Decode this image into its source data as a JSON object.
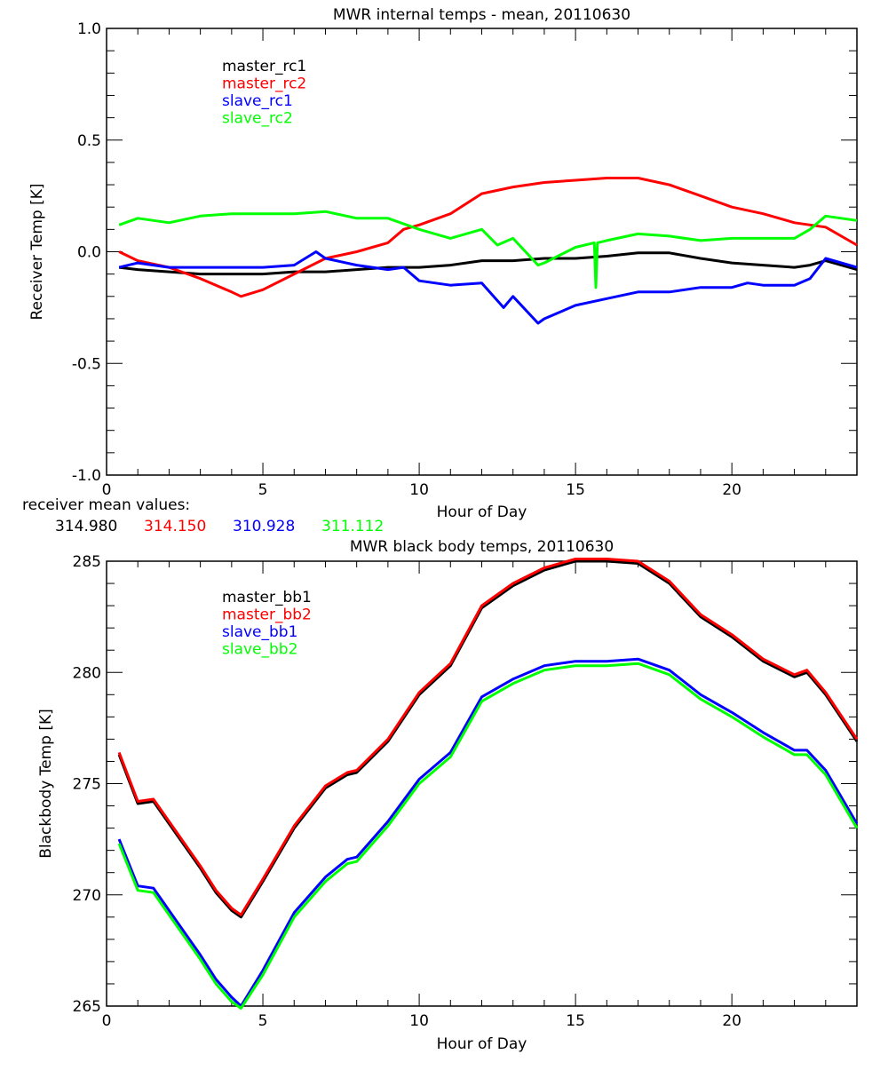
{
  "chart_data": [
    {
      "type": "line",
      "title": "MWR internal temps - mean, 20110630",
      "xlabel": "Hour of Day",
      "ylabel": "Receiver Temp [K]",
      "xlim": [
        0,
        24
      ],
      "ylim": [
        -1.0,
        1.0
      ],
      "xticks": [
        0,
        5,
        10,
        15,
        20
      ],
      "yticks": [
        -1.0,
        -0.5,
        0.0,
        0.5,
        1.0
      ],
      "ytick_labels": [
        "-1.0",
        "-0.5",
        "0.0",
        "0.5",
        "1.0"
      ],
      "legend_placement": "top-left",
      "grid": false,
      "series": [
        {
          "name": "master_rc1",
          "color": "#000000",
          "x": [
            0.4,
            1,
            2,
            3,
            4,
            5,
            6,
            7,
            8,
            9,
            10,
            11,
            12,
            13,
            14,
            15,
            16,
            17,
            18,
            19,
            20,
            21,
            22,
            22.5,
            23,
            24
          ],
          "y": [
            -0.07,
            -0.08,
            -0.09,
            -0.1,
            -0.1,
            -0.1,
            -0.09,
            -0.09,
            -0.08,
            -0.07,
            -0.07,
            -0.06,
            -0.04,
            -0.04,
            -0.03,
            -0.03,
            -0.02,
            -0.005,
            -0.005,
            -0.03,
            -0.05,
            -0.06,
            -0.07,
            -0.06,
            -0.04,
            -0.08
          ]
        },
        {
          "name": "master_rc2",
          "color": "#ff0000",
          "x": [
            0.4,
            1,
            2,
            3,
            4,
            4.3,
            5,
            6,
            7,
            8,
            9,
            9.5,
            10,
            11,
            12,
            13,
            14,
            15,
            16,
            17,
            18,
            19,
            20,
            21,
            22,
            23,
            24
          ],
          "y": [
            0.0,
            -0.04,
            -0.07,
            -0.12,
            -0.18,
            -0.2,
            -0.17,
            -0.1,
            -0.03,
            0.0,
            0.04,
            0.1,
            0.12,
            0.17,
            0.26,
            0.29,
            0.31,
            0.32,
            0.33,
            0.33,
            0.3,
            0.25,
            0.2,
            0.17,
            0.13,
            0.11,
            0.03
          ]
        },
        {
          "name": "slave_rc1",
          "color": "#0000ff",
          "x": [
            0.4,
            1,
            2,
            3,
            4,
            5,
            6,
            6.7,
            7,
            8,
            9,
            9.5,
            10,
            11,
            12,
            12.7,
            13,
            13.8,
            14,
            15,
            16,
            17,
            18,
            19,
            20,
            20.5,
            21,
            22,
            22.5,
            23,
            24
          ],
          "y": [
            -0.07,
            -0.05,
            -0.07,
            -0.07,
            -0.07,
            -0.07,
            -0.06,
            0.0,
            -0.03,
            -0.06,
            -0.08,
            -0.07,
            -0.13,
            -0.15,
            -0.14,
            -0.25,
            -0.2,
            -0.32,
            -0.3,
            -0.24,
            -0.21,
            -0.18,
            -0.18,
            -0.16,
            -0.16,
            -0.14,
            -0.15,
            -0.15,
            -0.12,
            -0.03,
            -0.07
          ]
        },
        {
          "name": "slave_rc2",
          "color": "#00ff00",
          "x": [
            0.4,
            1,
            2,
            3,
            4,
            5,
            6,
            7,
            8,
            9,
            10,
            11,
            12,
            12.5,
            13,
            13.8,
            14,
            15,
            15.6,
            15.65,
            15.7,
            16,
            17,
            18,
            19,
            20,
            21,
            22,
            22.5,
            23,
            24
          ],
          "y": [
            0.12,
            0.15,
            0.13,
            0.16,
            0.17,
            0.17,
            0.17,
            0.18,
            0.15,
            0.15,
            0.1,
            0.06,
            0.1,
            0.03,
            0.06,
            -0.06,
            -0.05,
            0.02,
            0.04,
            -0.16,
            0.04,
            0.05,
            0.08,
            0.07,
            0.05,
            0.06,
            0.06,
            0.06,
            0.1,
            0.16,
            0.14
          ]
        }
      ]
    },
    {
      "type": "line",
      "title": "MWR black body temps, 20110630",
      "xlabel": "Hour of Day",
      "ylabel": "Blackbody Temp [K]",
      "xlim": [
        0,
        24
      ],
      "ylim": [
        265,
        285
      ],
      "xticks": [
        0,
        5,
        10,
        15,
        20
      ],
      "yticks": [
        265,
        270,
        275,
        280,
        285
      ],
      "ytick_labels": [
        "265",
        "270",
        "275",
        "280",
        "285"
      ],
      "legend_placement": "top-left",
      "grid": false,
      "series": [
        {
          "name": "master_bb1",
          "color": "#000000",
          "x": [
            0.4,
            1,
            1.5,
            2,
            3,
            3.5,
            4,
            4.3,
            5,
            6,
            7,
            7.7,
            8,
            9,
            10,
            11,
            12,
            13,
            14,
            15,
            16,
            17,
            18,
            19,
            20,
            21,
            22,
            22.4,
            23,
            24
          ],
          "y": [
            276.3,
            274.1,
            274.2,
            273.2,
            271.2,
            270.1,
            269.3,
            269.0,
            270.6,
            273.0,
            274.8,
            275.4,
            275.5,
            276.9,
            279.0,
            280.3,
            282.9,
            283.9,
            284.6,
            285.0,
            285.0,
            284.9,
            284.0,
            282.5,
            281.6,
            280.5,
            279.8,
            280.0,
            279.0,
            276.9
          ]
        },
        {
          "name": "master_bb2",
          "color": "#ff0000",
          "x": [
            0.4,
            1,
            1.5,
            2,
            3,
            3.5,
            4,
            4.3,
            5,
            6,
            7,
            7.7,
            8,
            9,
            10,
            11,
            12,
            13,
            14,
            15,
            16,
            17,
            18,
            19,
            20,
            21,
            22,
            22.4,
            23,
            24
          ],
          "y": [
            276.4,
            274.2,
            274.3,
            273.3,
            271.3,
            270.2,
            269.4,
            269.1,
            270.7,
            273.1,
            274.9,
            275.5,
            275.6,
            277.0,
            279.1,
            280.4,
            283.0,
            284.0,
            284.7,
            285.1,
            285.1,
            285.0,
            284.1,
            282.6,
            281.7,
            280.6,
            279.9,
            280.1,
            279.1,
            277.0
          ]
        },
        {
          "name": "slave_bb1",
          "color": "#0000ff",
          "x": [
            0.4,
            1,
            1.5,
            2,
            3,
            3.5,
            4,
            4.3,
            5,
            6,
            7,
            7.7,
            8,
            9,
            10,
            11,
            12,
            13,
            14,
            15,
            16,
            17,
            18,
            19,
            20,
            21,
            22,
            22.4,
            23,
            24
          ],
          "y": [
            272.5,
            270.4,
            270.3,
            269.3,
            267.3,
            266.2,
            265.4,
            265.0,
            266.6,
            269.2,
            270.8,
            271.6,
            271.7,
            273.3,
            275.2,
            276.4,
            278.9,
            279.7,
            280.3,
            280.5,
            280.5,
            280.6,
            280.1,
            279.0,
            278.2,
            277.3,
            276.5,
            276.5,
            275.6,
            273.2
          ]
        },
        {
          "name": "slave_bb2",
          "color": "#00ff00",
          "x": [
            0.4,
            1,
            1.5,
            2,
            3,
            3.5,
            4,
            4.3,
            5,
            6,
            7,
            7.7,
            8,
            9,
            10,
            11,
            12,
            13,
            14,
            15,
            16,
            17,
            18,
            19,
            20,
            21,
            22,
            22.4,
            23,
            24
          ],
          "y": [
            272.3,
            270.2,
            270.1,
            269.1,
            267.1,
            266.0,
            265.2,
            264.9,
            266.4,
            269.0,
            270.6,
            271.4,
            271.5,
            273.1,
            275.0,
            276.2,
            278.7,
            279.5,
            280.1,
            280.3,
            280.3,
            280.4,
            279.9,
            278.8,
            278.0,
            277.1,
            276.3,
            276.3,
            275.4,
            273.0
          ]
        }
      ]
    }
  ],
  "receiver_mean": {
    "label": "receiver mean values:",
    "values": [
      {
        "text": "314.980",
        "color": "#000000"
      },
      {
        "text": "314.150",
        "color": "#ff0000"
      },
      {
        "text": "310.928",
        "color": "#0000ff"
      },
      {
        "text": "311.112",
        "color": "#00ff00"
      }
    ]
  }
}
